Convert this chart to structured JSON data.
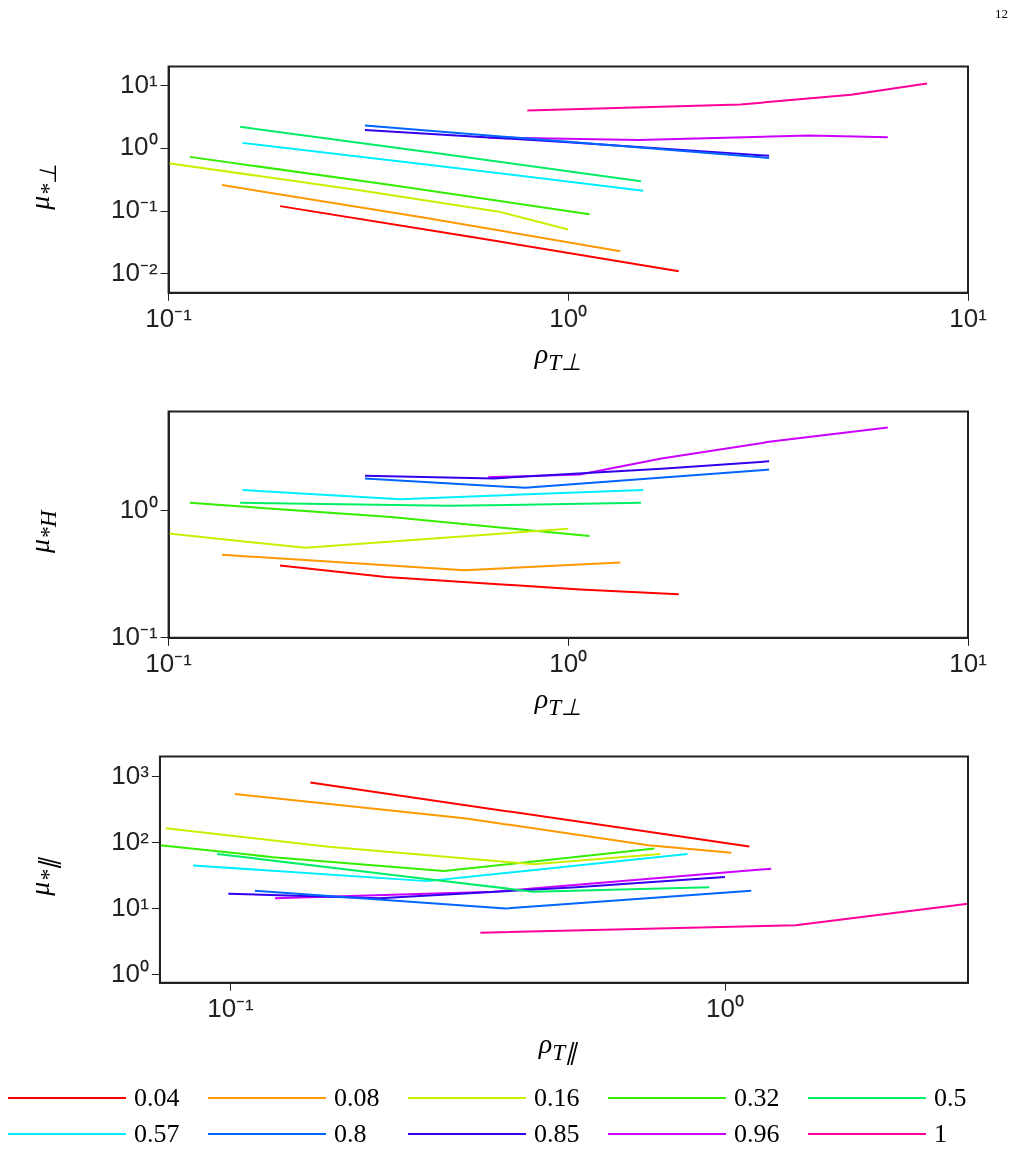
{
  "chart_data": [
    {
      "type": "line",
      "annotations": [
        "12"
      ],
      "xlabel": "ρ$_{T⊥}$",
      "ylabel": "μ$_{*⊥}$",
      "log": "xy",
      "xlim": [
        0.1,
        10
      ],
      "ylim": [
        0.005,
        20
      ],
      "xticks": [
        {
          "value": 0.1,
          "label": "10⁻¹"
        },
        {
          "value": 1,
          "label": "10⁰"
        },
        {
          "value": 10,
          "label": "10¹"
        }
      ],
      "yticks": [
        {
          "value": 0.01,
          "label": "10⁻²"
        },
        {
          "value": 0.1,
          "label": "10⁻¹"
        },
        {
          "value": 1,
          "label": "10⁰"
        },
        {
          "value": 10,
          "label": "10¹"
        }
      ],
      "series": [
        {
          "color": "#ff0000",
          "x": [
            0.19,
            0.6,
            1.89
          ],
          "values": [
            0.12,
            0.037,
            0.011
          ]
        },
        {
          "color": "#ff9900",
          "x": [
            0.136,
            0.43,
            1.35
          ],
          "values": [
            0.26,
            0.08,
            0.023
          ]
        },
        {
          "color": "#ccee00",
          "x": [
            0.1,
            0.306,
            0.67,
            1.0
          ],
          "values": [
            0.58,
            0.21,
            0.098,
            0.051
          ]
        },
        {
          "color": "#33ee00",
          "x": [
            0.113,
            0.36,
            1.13
          ],
          "values": [
            0.73,
            0.26,
            0.089
          ]
        },
        {
          "color": "#00ee66",
          "x": [
            0.151,
            0.48,
            1.52
          ],
          "values": [
            2.2,
            0.82,
            0.3
          ]
        },
        {
          "color": "#00eeff",
          "x": [
            0.153,
            0.48,
            1.54
          ],
          "values": [
            1.22,
            0.52,
            0.21
          ]
        },
        {
          "color": "#0066ff",
          "x": [
            0.31,
            1.0,
            3.18
          ],
          "values": [
            2.3,
            1.27,
            0.7
          ]
        },
        {
          "color": "#3300ee",
          "x": [
            0.31,
            1.0,
            3.18
          ],
          "values": [
            1.96,
            1.25,
            0.76
          ]
        },
        {
          "color": "#cc00ff",
          "x": [
            0.63,
            1.5,
            4.0,
            6.3
          ],
          "values": [
            1.49,
            1.35,
            1.6,
            1.5
          ]
        },
        {
          "color": "#ff0099",
          "x": [
            0.79,
            2.7,
            5.1,
            7.9
          ],
          "values": [
            4.0,
            5.0,
            7.1,
            10.8
          ]
        }
      ]
    },
    {
      "type": "line",
      "xlabel": "ρ$_{T⊥}$",
      "ylabel": "μ$_{*H}$",
      "log": "xy",
      "xlim": [
        0.1,
        10
      ],
      "ylim": [
        0.1,
        6
      ],
      "xticks": [
        {
          "value": 0.1,
          "label": "10⁻¹"
        },
        {
          "value": 1,
          "label": "10⁰"
        },
        {
          "value": 10,
          "label": "10¹"
        }
      ],
      "yticks": [
        {
          "value": 0.1,
          "label": "10⁻¹"
        },
        {
          "value": 1,
          "label": "10⁰"
        }
      ],
      "series": [
        {
          "color": "#ff0000",
          "x": [
            0.19,
            0.35,
            1.07,
            1.89
          ],
          "values": [
            0.37,
            0.3,
            0.24,
            0.22
          ]
        },
        {
          "color": "#ff9900",
          "x": [
            0.136,
            0.55,
            1.35
          ],
          "values": [
            0.45,
            0.34,
            0.39
          ]
        },
        {
          "color": "#ccee00",
          "x": [
            0.1,
            0.22,
            1.0
          ],
          "values": [
            0.66,
            0.51,
            0.72
          ]
        },
        {
          "color": "#33ee00",
          "x": [
            0.113,
            0.36,
            1.13
          ],
          "values": [
            1.15,
            0.89,
            0.63
          ]
        },
        {
          "color": "#00ee66",
          "x": [
            0.151,
            0.5,
            1.52
          ],
          "values": [
            1.15,
            1.09,
            1.15
          ]
        },
        {
          "color": "#00eeff",
          "x": [
            0.153,
            0.38,
            1.54
          ],
          "values": [
            1.45,
            1.23,
            1.45
          ]
        },
        {
          "color": "#0066ff",
          "x": [
            0.31,
            0.78,
            3.18
          ],
          "values": [
            1.79,
            1.51,
            2.1
          ]
        },
        {
          "color": "#3300ee",
          "x": [
            0.31,
            0.65,
            1.71,
            3.18
          ],
          "values": [
            1.88,
            1.79,
            2.13,
            2.44
          ]
        },
        {
          "color": "#cc00ff",
          "x": [
            0.63,
            1.07,
            1.71,
            3.18,
            6.3
          ],
          "values": [
            1.83,
            1.92,
            2.57,
            3.47,
            4.5
          ]
        }
      ]
    },
    {
      "type": "line",
      "xlabel": "ρ$_{T∥}$",
      "ylabel": "μ$_{*∥}$",
      "log": "xy",
      "xlim": [
        0.072,
        3.1
      ],
      "ylim": [
        0.75,
        2000
      ],
      "legend": "bottom",
      "xticks": [
        {
          "value": 0.1,
          "label": "10⁻¹"
        },
        {
          "value": 1,
          "label": "10⁰"
        }
      ],
      "yticks": [
        {
          "value": 1,
          "label": "10⁰"
        },
        {
          "value": 10,
          "label": "10¹"
        },
        {
          "value": 100,
          "label": "10²"
        },
        {
          "value": 1000,
          "label": "10³"
        }
      ],
      "series": [
        {
          "name": "0.04",
          "color": "#ff0000",
          "x": [
            0.145,
            1.12
          ],
          "values": [
            809,
            87
          ]
        },
        {
          "name": "0.08",
          "color": "#ff9900",
          "x": [
            0.102,
            0.3,
            0.7,
            1.03
          ],
          "values": [
            542,
            231,
            91,
            70
          ]
        },
        {
          "name": "0.16",
          "color": "#ccee00",
          "x": [
            0.074,
            0.158,
            0.41,
            0.74
          ],
          "values": [
            165,
            86,
            47,
            67
          ]
        },
        {
          "name": "0.32",
          "color": "#33ee00",
          "x": [
            0.072,
            0.122,
            0.27,
            0.72
          ],
          "values": [
            91,
            60,
            37,
            81
          ]
        },
        {
          "name": "0.5",
          "color": "#00ee66",
          "x": [
            0.094,
            0.215,
            0.41,
            0.93
          ],
          "values": [
            67,
            32,
            18,
            21
          ]
        },
        {
          "name": "0.57",
          "color": "#00eeff",
          "x": [
            0.084,
            0.25,
            0.84
          ],
          "values": [
            45,
            26,
            67
          ]
        },
        {
          "name": "0.8",
          "color": "#0066ff",
          "x": [
            0.112,
            0.36,
            1.13
          ],
          "values": [
            18.6,
            10,
            18.6
          ]
        },
        {
          "name": "0.85",
          "color": "#3300ee",
          "x": [
            0.099,
            0.2,
            0.5,
            1.0
          ],
          "values": [
            16.8,
            14.3,
            21,
            30
          ]
        },
        {
          "name": "0.96",
          "color": "#cc00ff",
          "x": [
            0.123,
            0.34,
            1.24
          ],
          "values": [
            14.3,
            18,
            40
          ]
        },
        {
          "name": "1",
          "color": "#ff0099",
          "x": [
            0.32,
            1.39,
            3.1
          ],
          "values": [
            4.3,
            5.6,
            11.8
          ]
        }
      ]
    }
  ]
}
